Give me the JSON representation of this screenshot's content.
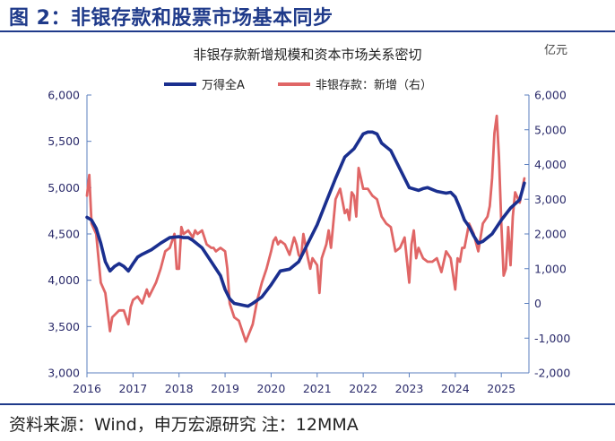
{
  "figure_title": "图 2：非银存款和股票市场基本同步",
  "source_note": "资料来源：Wind，申万宏源研究  注：12MMA",
  "colors": {
    "left_series": "#1a2f8f",
    "right_series": "#e06666",
    "rule": "#1f3a8a"
  },
  "chart_data": {
    "type": "line",
    "title": "非银存款新增规模和资本市场关系密切",
    "unit_right": "亿元",
    "x_ticks": [
      2016,
      2017,
      2018,
      2019,
      2020,
      2021,
      2022,
      2023,
      2024,
      2025
    ],
    "x_tick_labels": [
      "2016",
      "2017",
      "2018",
      "2019",
      "2020",
      "2021",
      "2022",
      "2023",
      "2024",
      "2025"
    ],
    "xlim": [
      2016,
      2025.6
    ],
    "ylim_left": [
      3000,
      6000
    ],
    "ylim_right": [
      -2000,
      6000
    ],
    "left_ticks": [
      3000,
      3500,
      4000,
      4500,
      5000,
      5500,
      6000
    ],
    "left_tick_labels": [
      "3,000",
      "3,500",
      "4,000",
      "4,500",
      "5,000",
      "5,500",
      "6,000"
    ],
    "right_ticks": [
      -2000,
      -1000,
      0,
      1000,
      2000,
      3000,
      4000,
      5000,
      6000
    ],
    "right_tick_labels": [
      "-2,000",
      "-1,000",
      "0",
      "1,000",
      "2,000",
      "3,000",
      "4,000",
      "5,000",
      "6,000"
    ],
    "legend": [
      "万得全A",
      "非银存款：新增（右）"
    ],
    "series": [
      {
        "name": "万得全A",
        "axis": "left",
        "x": [
          2016.0,
          2016.1,
          2016.2,
          2016.3,
          2016.4,
          2016.5,
          2016.6,
          2016.7,
          2016.8,
          2016.9,
          2017.0,
          2017.1,
          2017.2,
          2017.4,
          2017.6,
          2017.8,
          2018.0,
          2018.1,
          2018.2,
          2018.3,
          2018.5,
          2018.7,
          2018.9,
          2019.0,
          2019.1,
          2019.2,
          2019.3,
          2019.4,
          2019.5,
          2019.6,
          2019.8,
          2020.0,
          2020.2,
          2020.4,
          2020.6,
          2020.8,
          2021.0,
          2021.2,
          2021.4,
          2021.6,
          2021.8,
          2021.9,
          2022.0,
          2022.1,
          2022.2,
          2022.3,
          2022.4,
          2022.5,
          2022.6,
          2022.8,
          2023.0,
          2023.2,
          2023.3,
          2023.4,
          2023.6,
          2023.8,
          2023.9,
          2024.0,
          2024.1,
          2024.2,
          2024.3,
          2024.4,
          2024.5,
          2024.6,
          2024.8,
          2025.0,
          2025.2,
          2025.4,
          2025.5
        ],
        "values": [
          4680,
          4650,
          4560,
          4400,
          4200,
          4100,
          4150,
          4180,
          4150,
          4100,
          4180,
          4250,
          4280,
          4330,
          4400,
          4460,
          4470,
          4460,
          4460,
          4430,
          4350,
          4200,
          4050,
          3900,
          3800,
          3750,
          3740,
          3730,
          3720,
          3750,
          3820,
          3950,
          4100,
          4120,
          4200,
          4400,
          4600,
          4850,
          5100,
          5330,
          5420,
          5500,
          5580,
          5600,
          5600,
          5580,
          5480,
          5440,
          5400,
          5200,
          5000,
          4970,
          4990,
          5000,
          4960,
          4940,
          4950,
          4900,
          4780,
          4650,
          4580,
          4480,
          4400,
          4420,
          4500,
          4650,
          4780,
          4870,
          5050
        ]
      },
      {
        "name": "非银存款：新增（右）",
        "axis": "right",
        "x": [
          2016.0,
          2016.05,
          2016.1,
          2016.2,
          2016.3,
          2016.4,
          2016.5,
          2016.55,
          2016.7,
          2016.8,
          2016.9,
          2016.95,
          2017.0,
          2017.1,
          2017.2,
          2017.3,
          2017.35,
          2017.5,
          2017.6,
          2017.7,
          2017.8,
          2017.9,
          2017.95,
          2018.0,
          2018.05,
          2018.1,
          2018.2,
          2018.3,
          2018.35,
          2018.4,
          2018.5,
          2018.6,
          2018.7,
          2018.75,
          2018.8,
          2018.9,
          2019.0,
          2019.05,
          2019.1,
          2019.2,
          2019.3,
          2019.45,
          2019.6,
          2019.7,
          2019.8,
          2019.9,
          2020.0,
          2020.05,
          2020.1,
          2020.15,
          2020.2,
          2020.3,
          2020.4,
          2020.5,
          2020.55,
          2020.6,
          2020.65,
          2020.7,
          2020.8,
          2020.85,
          2020.9,
          2021.0,
          2021.05,
          2021.1,
          2021.2,
          2021.25,
          2021.3,
          2021.4,
          2021.5,
          2021.6,
          2021.65,
          2021.7,
          2021.75,
          2021.8,
          2021.85,
          2021.9,
          2021.95,
          2022.0,
          2022.1,
          2022.2,
          2022.3,
          2022.4,
          2022.5,
          2022.6,
          2022.7,
          2022.8,
          2022.9,
          2023.0,
          2023.05,
          2023.1,
          2023.15,
          2023.2,
          2023.3,
          2023.4,
          2023.5,
          2023.6,
          2023.7,
          2023.8,
          2023.9,
          2024.0,
          2024.05,
          2024.1,
          2024.15,
          2024.2,
          2024.3,
          2024.4,
          2024.5,
          2024.6,
          2024.65,
          2024.7,
          2024.75,
          2024.8,
          2024.85,
          2024.9,
          2024.95,
          2025.0,
          2025.05,
          2025.1,
          2025.15,
          2025.2,
          2025.25,
          2025.3,
          2025.4,
          2025.5
        ],
        "values": [
          3100,
          3700,
          2300,
          2000,
          600,
          300,
          -800,
          -400,
          -200,
          -200,
          -600,
          -100,
          100,
          200,
          0,
          400,
          200,
          600,
          1000,
          1500,
          1600,
          2000,
          1000,
          1000,
          2200,
          2000,
          2100,
          1900,
          2100,
          2000,
          2100,
          1700,
          1600,
          1600,
          1500,
          1600,
          1500,
          1000,
          0,
          -400,
          -500,
          -1100,
          -600,
          100,
          600,
          1000,
          1500,
          1800,
          1900,
          1700,
          1800,
          1700,
          1400,
          1900,
          1700,
          1400,
          1300,
          2000,
          1300,
          1000,
          1300,
          1100,
          300,
          1300,
          1700,
          2100,
          1600,
          3000,
          3300,
          2600,
          2700,
          2400,
          3200,
          3100,
          2500,
          3900,
          3600,
          3300,
          3300,
          3100,
          3000,
          2500,
          2300,
          2200,
          1500,
          1600,
          1900,
          600,
          1700,
          2100,
          1300,
          1600,
          1300,
          1200,
          1200,
          1300,
          900,
          1500,
          1300,
          400,
          1300,
          1200,
          1600,
          1600,
          2300,
          2000,
          1500,
          2300,
          2400,
          2500,
          2800,
          3600,
          4900,
          5400,
          4200,
          2300,
          800,
          1000,
          2200,
          1100,
          2500,
          3200,
          2900,
          3600
        ]
      }
    ]
  }
}
